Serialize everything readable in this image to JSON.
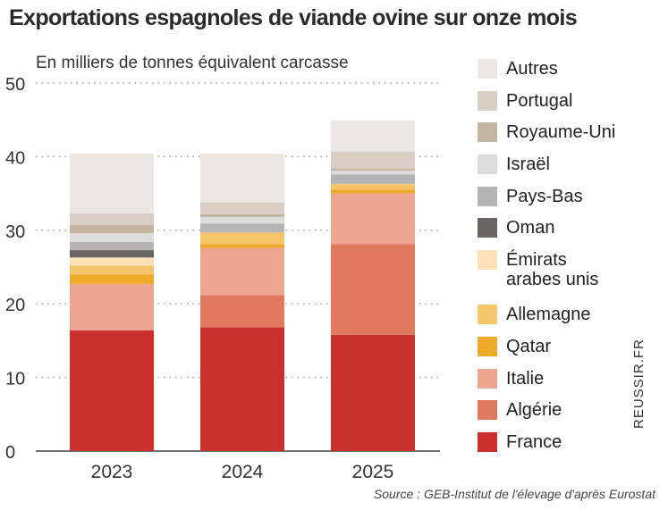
{
  "chart_data": {
    "type": "bar",
    "stacked": true,
    "title": "Exportations espagnoles de viande ovine sur onze mois",
    "subtitle": "En milliers de tonnes équivalent carcasse",
    "categories": [
      "2023",
      "2024",
      "2025"
    ],
    "ylim": [
      0,
      50
    ],
    "yticks": [
      0,
      10,
      20,
      30,
      40,
      50
    ],
    "grid": "dotted horizontal",
    "legend": "right",
    "series": [
      {
        "name": "France",
        "color": "#c9302c",
        "values": [
          16.4,
          16.8,
          15.8
        ]
      },
      {
        "name": "Algérie",
        "color": "#e07a5f",
        "values": [
          0,
          4.4,
          12.3
        ]
      },
      {
        "name": "Italie",
        "color": "#eca58e",
        "values": [
          6.3,
          6.4,
          6.9
        ]
      },
      {
        "name": "Qatar",
        "color": "#eeaa2a",
        "values": [
          1.3,
          0.5,
          0.5
        ]
      },
      {
        "name": "Allemagne",
        "color": "#f5c56b",
        "values": [
          1.2,
          1.6,
          0.8
        ]
      },
      {
        "name": "Émirats arabes unis",
        "color": "#fbe0b8",
        "values": [
          1.1,
          0,
          0
        ]
      },
      {
        "name": "Oman",
        "color": "#6b6563",
        "values": [
          1.0,
          0,
          0
        ]
      },
      {
        "name": "Pays-Bas",
        "color": "#b5b3b3",
        "values": [
          1.1,
          1.2,
          1.3
        ]
      },
      {
        "name": "Israël",
        "color": "#dcdcdc",
        "values": [
          1.2,
          0.9,
          0.5
        ]
      },
      {
        "name": "Royaume-Uni",
        "color": "#c4b5a0",
        "values": [
          1.1,
          0.4,
          0.3
        ]
      },
      {
        "name": "Portugal",
        "color": "#d8cec3",
        "values": [
          1.6,
          1.6,
          2.3
        ]
      },
      {
        "name": "Autres",
        "color": "#ebe8e3",
        "values": [
          8.1,
          6.6,
          4.2
        ]
      }
    ]
  },
  "source": "Source : GEB-Institut de l'élevage d'après Eurostat",
  "brand": "REUSSIR.FR"
}
